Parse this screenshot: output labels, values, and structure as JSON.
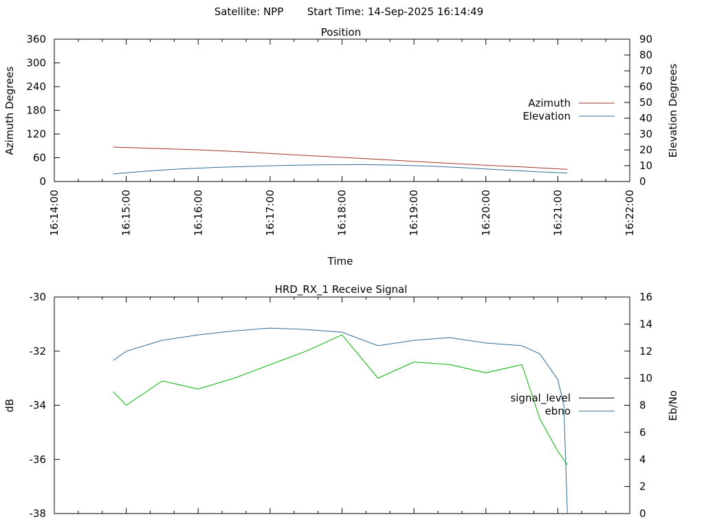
{
  "header": {
    "satellite": "Satellite: NPP",
    "start_time": "Start Time: 14-Sep-2025 16:14:49"
  },
  "chart_data": [
    {
      "type": "line",
      "title": "Position",
      "xlabel": "Time",
      "ylabel": "Azimuth Degrees",
      "y2label": "Elevation Degrees",
      "x_ticks": [
        "16:14:00",
        "16:15:00",
        "16:16:00",
        "16:17:00",
        "16:18:00",
        "16:19:00",
        "16:20:00",
        "16:21:00",
        "16:22:00"
      ],
      "xlim": [
        "16:14:00",
        "16:22:00"
      ],
      "ylim": [
        0,
        360
      ],
      "y2lim": [
        0,
        90
      ],
      "y_ticks": [
        0,
        60,
        120,
        180,
        240,
        300,
        360
      ],
      "y2_ticks": [
        0,
        10,
        20,
        30,
        40,
        50,
        60,
        70,
        80,
        90
      ],
      "legend_position": "right",
      "grid": false,
      "series": [
        {
          "name": "Azimuth",
          "axis": "y",
          "color": "#a0302a",
          "x": [
            "16:14:49",
            "16:15:30",
            "16:16:00",
            "16:16:30",
            "16:17:00",
            "16:17:30",
            "16:18:00",
            "16:18:30",
            "16:19:00",
            "16:19:30",
            "16:20:00",
            "16:20:30",
            "16:21:00",
            "16:21:08"
          ],
          "y": [
            87,
            83,
            80,
            76,
            71,
            66,
            61,
            56,
            51,
            46,
            41,
            37,
            32,
            31
          ]
        },
        {
          "name": "Elevation",
          "axis": "y2",
          "color": "#2c6b96",
          "x": [
            "16:14:49",
            "16:15:15",
            "16:15:45",
            "16:16:15",
            "16:16:45",
            "16:17:15",
            "16:17:45",
            "16:18:15",
            "16:18:45",
            "16:19:15",
            "16:19:45",
            "16:20:15",
            "16:20:45",
            "16:21:08"
          ],
          "y": [
            4.8,
            6.5,
            7.9,
            8.9,
            9.6,
            10.2,
            10.6,
            10.7,
            10.4,
            9.7,
            8.6,
            7.3,
            6.1,
            5.3
          ]
        }
      ]
    },
    {
      "type": "line",
      "title": "HRD_RX_1 Receive Signal",
      "xlabel": "",
      "ylabel": "dB",
      "y2label": "Eb/No",
      "xlim": [
        "16:14:00",
        "16:22:00"
      ],
      "ylim": [
        -38,
        -30
      ],
      "y2lim": [
        0,
        16
      ],
      "y_ticks": [
        -38,
        -36,
        -34,
        -32,
        -30
      ],
      "y2_ticks": [
        0,
        2,
        4,
        6,
        8,
        10,
        12,
        14,
        16
      ],
      "legend_position": "right",
      "grid": false,
      "series": [
        {
          "name": "signal_level",
          "axis": "y",
          "color": "#000000",
          "x": [],
          "y": []
        },
        {
          "name": "ebno",
          "axis": "y2",
          "color": "#2c6b96",
          "x": [
            "16:14:49",
            "16:15:00",
            "16:15:30",
            "16:16:00",
            "16:16:30",
            "16:17:00",
            "16:17:30",
            "16:18:00",
            "16:18:30",
            "16:19:00",
            "16:19:30",
            "16:20:00",
            "16:20:30",
            "16:20:45",
            "16:21:00",
            "16:21:05",
            "16:21:08"
          ],
          "y": [
            11.3,
            12.0,
            12.8,
            13.2,
            13.5,
            13.7,
            13.6,
            13.4,
            12.4,
            12.8,
            13.0,
            12.6,
            12.4,
            11.8,
            9.9,
            8.0,
            0.0
          ]
        },
        {
          "name": "",
          "axis": "y2",
          "color": "#00b000",
          "x": [
            "16:14:49",
            "16:15:00",
            "16:15:30",
            "16:16:00",
            "16:16:30",
            "16:17:00",
            "16:17:30",
            "16:18:00",
            "16:18:30",
            "16:19:00",
            "16:19:30",
            "16:20:00",
            "16:20:30",
            "16:20:45",
            "16:21:00",
            "16:21:08"
          ],
          "y": [
            9.0,
            8.0,
            9.8,
            9.2,
            10.0,
            11.0,
            12.0,
            13.2,
            10.0,
            11.2,
            11.0,
            10.4,
            11.0,
            7.0,
            4.6,
            3.6
          ]
        }
      ]
    }
  ]
}
